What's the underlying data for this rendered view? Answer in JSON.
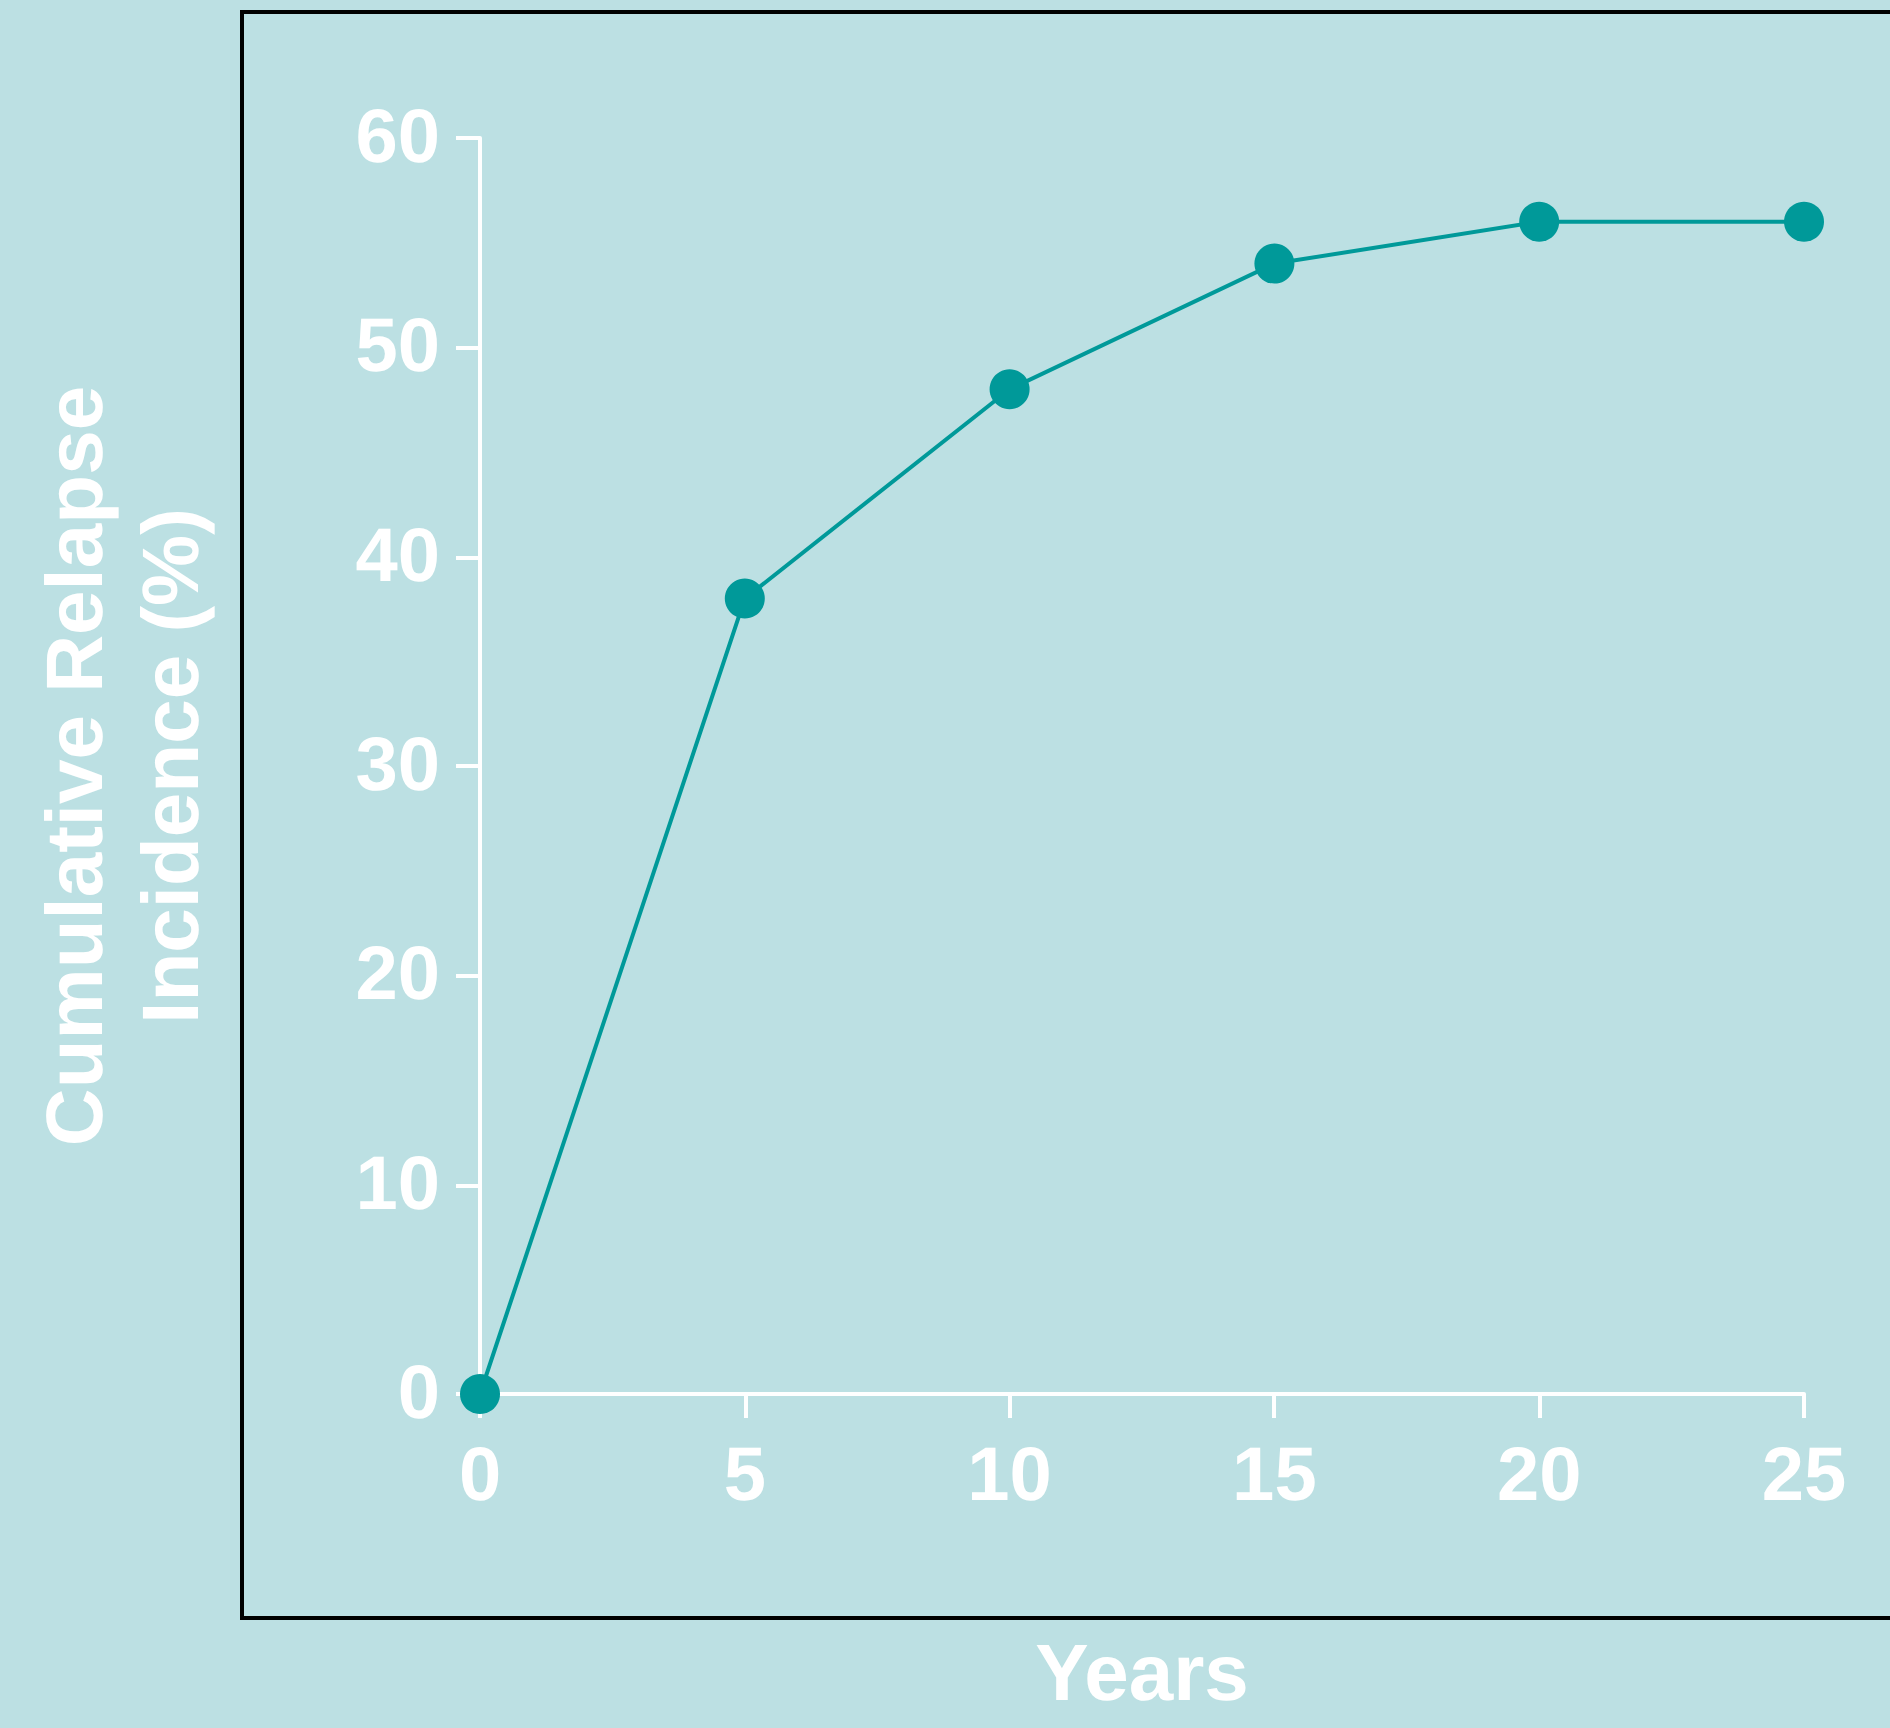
{
  "chart_data": {
    "type": "line",
    "xlabel": "Years",
    "ylabel": "Cumulative Relapse\nIncidence (%)",
    "x": [
      0,
      5,
      10,
      15,
      20,
      25
    ],
    "series": [
      {
        "color": "#009999",
        "values": [
          0,
          38,
          48,
          54,
          56,
          56
        ]
      }
    ],
    "xlim": [
      0,
      25
    ],
    "xticks": [
      0,
      5,
      10,
      15,
      20,
      25
    ],
    "ylim": [
      0,
      60
    ],
    "yticks": [
      0,
      10,
      20,
      30,
      40,
      50,
      60
    ],
    "grid": false,
    "marker": "circle",
    "line_style": "solid"
  }
}
